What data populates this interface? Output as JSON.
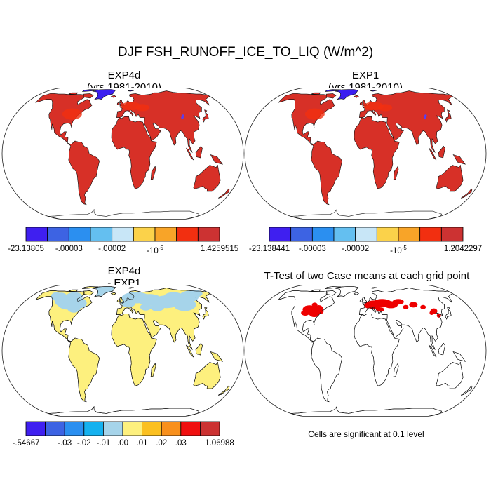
{
  "title": "DJF FSH_RUNOFF_ICE_TO_LIQ (W/m^2)",
  "panels": [
    {
      "id": "exp4d",
      "title_line1": "EXP4d",
      "title_line2": "(yrs 1981-2010)",
      "map_fill": "#d73027",
      "ice_fill": "#3a1ef0"
    },
    {
      "id": "exp1",
      "title_line1": "EXP1",
      "title_line2": "(yrs 1981-2010)",
      "map_fill": "#d73027",
      "ice_fill": "#3a1ef0"
    },
    {
      "id": "diff",
      "title_line1": "EXP4d",
      "title_line2": "- EXP1",
      "map_fill": "#fdf07e",
      "ice_fill": "#a6d4ea"
    },
    {
      "id": "ttest",
      "title_line1": "T-Test of two Case means at each grid point",
      "title_line2": "",
      "map_fill": "#ffffff",
      "ice_fill": "#ee0000"
    }
  ],
  "note": "Cells are significant at 0.1 level",
  "chart_data": [
    {
      "type": "heatmap",
      "panel": "EXP4d",
      "subtitle": "(yrs 1981-2010)",
      "colorbar": {
        "colors": [
          "#3f1ff0",
          "#3d63e3",
          "#2b8ff0",
          "#64bff0",
          "#c8e6f7",
          "#fbd24a",
          "#f8a428",
          "#f22f10",
          "#cc3232"
        ],
        "labels": [
          {
            "text": "-23.13805",
            "sup": "",
            "at": 0
          },
          {
            "text": "-.00003",
            "sup": "",
            "at": 2
          },
          {
            "text": "-.00002",
            "sup": "",
            "at": 4
          },
          {
            "text": "-10",
            "sup": "-5",
            "at": 6
          },
          {
            "text": "1.4259515",
            "sup": "",
            "at": 9
          }
        ]
      }
    },
    {
      "type": "heatmap",
      "panel": "EXP1",
      "subtitle": "(yrs 1981-2010)",
      "colorbar": {
        "colors": [
          "#3f1ff0",
          "#3d63e3",
          "#2b8ff0",
          "#64bff0",
          "#c8e6f7",
          "#fbd24a",
          "#f8a428",
          "#f22f10",
          "#cc3232"
        ],
        "labels": [
          {
            "text": "-23.138441",
            "sup": "",
            "at": 0
          },
          {
            "text": "-.00003",
            "sup": "",
            "at": 2
          },
          {
            "text": "-.00002",
            "sup": "",
            "at": 4
          },
          {
            "text": "-10",
            "sup": "-5",
            "at": 6
          },
          {
            "text": "1.2042297",
            "sup": "",
            "at": 9
          }
        ]
      }
    },
    {
      "type": "heatmap",
      "panel": "EXP4d - EXP1",
      "colorbar": {
        "colors": [
          "#3f1ff0",
          "#3d63e3",
          "#2b8ff0",
          "#15b1ef",
          "#a6d4ea",
          "#fdf07e",
          "#fbc020",
          "#f8901c",
          "#f01010",
          "#cc3232"
        ],
        "labels": [
          {
            "text": "-.54667",
            "sup": "",
            "at": 0
          },
          {
            "text": "-.03",
            "sup": "",
            "at": 2
          },
          {
            "text": "-.02",
            "sup": "",
            "at": 3
          },
          {
            "text": "-.01",
            "sup": "",
            "at": 4
          },
          {
            "text": ".00",
            "sup": "",
            "at": 5
          },
          {
            "text": ".01",
            "sup": "",
            "at": 6
          },
          {
            "text": ".02",
            "sup": "",
            "at": 7
          },
          {
            "text": ".03",
            "sup": "",
            "at": 8
          },
          {
            "text": "1.06988",
            "sup": "",
            "at": 10
          }
        ]
      }
    },
    {
      "type": "heatmap",
      "panel": "T-Test of two Case means at each grid point",
      "significance_level": 0.1,
      "significant_color": "#ee0000"
    }
  ]
}
